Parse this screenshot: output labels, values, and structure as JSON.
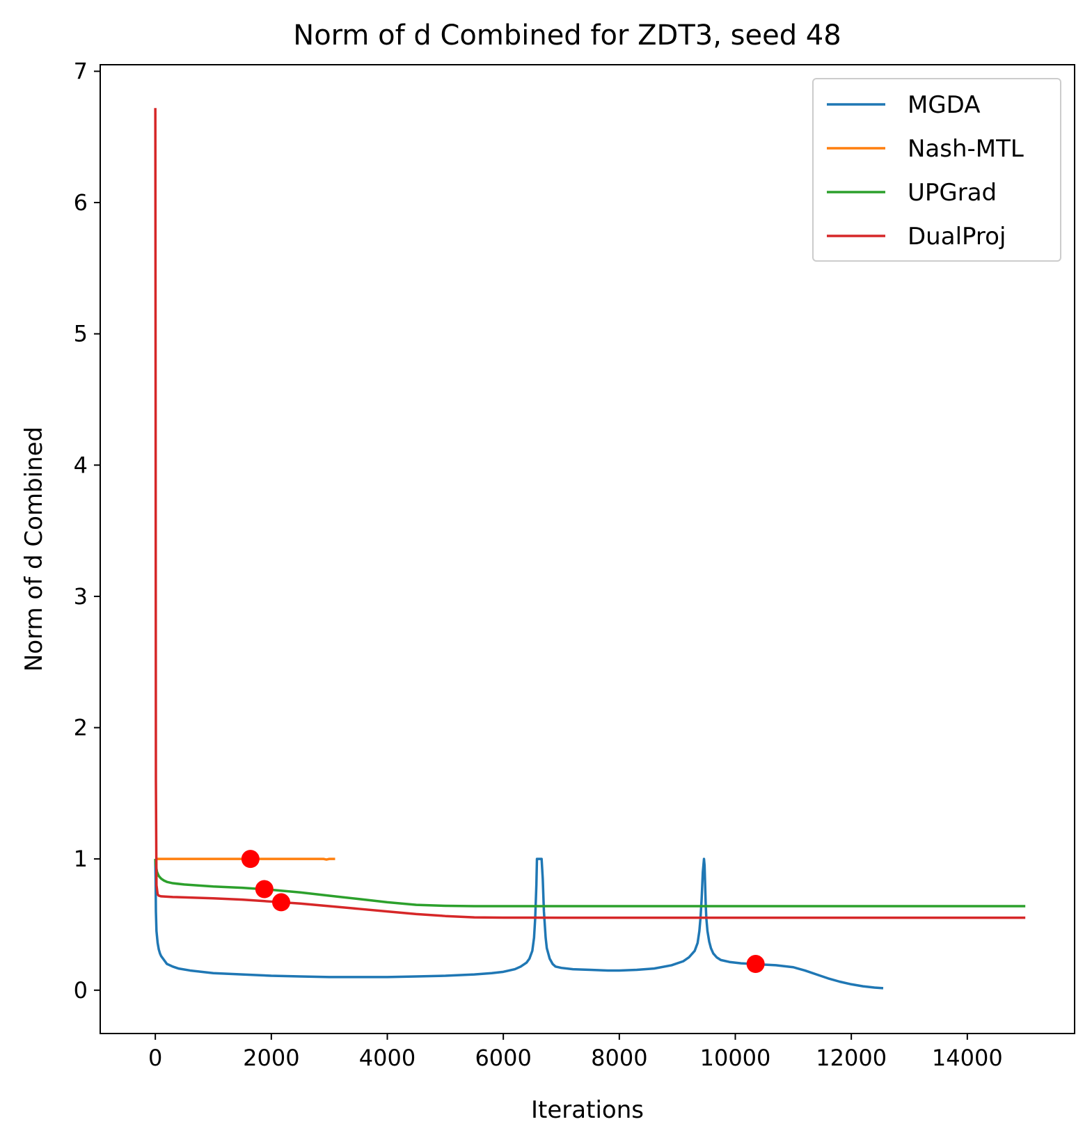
{
  "chart_data": {
    "type": "line",
    "title": "Norm of d Combined for ZDT3, seed 48",
    "xlabel": "Iterations",
    "ylabel": "Norm of d Combined",
    "xlim": [
      -950,
      15850
    ],
    "ylim": [
      -0.33,
      7.05
    ],
    "xticks": [
      0,
      2000,
      4000,
      6000,
      8000,
      10000,
      12000,
      14000
    ],
    "yticks": [
      0,
      1,
      2,
      3,
      4,
      5,
      6,
      7
    ],
    "grid": false,
    "legend_position": "top-right",
    "series": [
      {
        "name": "MGDA",
        "color": "#1f77b4",
        "x": [
          0,
          5,
          10,
          20,
          40,
          60,
          80,
          100,
          150,
          200,
          300,
          400,
          600,
          800,
          1000,
          1500,
          2000,
          2500,
          3000,
          3500,
          4000,
          4500,
          5000,
          5500,
          5800,
          6000,
          6200,
          6300,
          6400,
          6450,
          6500,
          6530,
          6550,
          6570,
          6580,
          6600,
          6650,
          6660,
          6680,
          6700,
          6730,
          6750,
          6800,
          6850,
          6900,
          7000,
          7200,
          7500,
          7800,
          8000,
          8300,
          8600,
          8900,
          9100,
          9200,
          9300,
          9350,
          9380,
          9400,
          9420,
          9440,
          9460,
          9470,
          9480,
          9490,
          9500,
          9520,
          9550,
          9580,
          9620,
          9680,
          9750,
          9900,
          10100,
          10300,
          10500,
          10700,
          11000,
          11200,
          11400,
          11600,
          11800,
          12000,
          12200,
          12400,
          12550
        ],
        "y": [
          1.0,
          0.85,
          0.6,
          0.45,
          0.36,
          0.31,
          0.28,
          0.26,
          0.23,
          0.2,
          0.18,
          0.165,
          0.15,
          0.14,
          0.13,
          0.12,
          0.11,
          0.105,
          0.1,
          0.1,
          0.1,
          0.105,
          0.11,
          0.12,
          0.13,
          0.14,
          0.16,
          0.18,
          0.21,
          0.24,
          0.3,
          0.4,
          0.55,
          0.8,
          1.0,
          1.0,
          1.0,
          1.0,
          0.85,
          0.6,
          0.4,
          0.32,
          0.24,
          0.2,
          0.18,
          0.17,
          0.16,
          0.155,
          0.15,
          0.15,
          0.155,
          0.165,
          0.19,
          0.22,
          0.25,
          0.3,
          0.36,
          0.45,
          0.55,
          0.7,
          0.9,
          1.0,
          0.95,
          0.8,
          0.65,
          0.55,
          0.45,
          0.37,
          0.32,
          0.28,
          0.25,
          0.23,
          0.215,
          0.205,
          0.2,
          0.195,
          0.19,
          0.175,
          0.15,
          0.12,
          0.09,
          0.065,
          0.045,
          0.03,
          0.02,
          0.015
        ]
      },
      {
        "name": "Nash-MTL",
        "color": "#ff7f0e",
        "x": [
          0,
          500,
          1000,
          1500,
          2000,
          2500,
          2900,
          2950,
          3000,
          3100
        ],
        "y": [
          1.0,
          1.0,
          1.0,
          1.0,
          1.0,
          1.0,
          1.0,
          0.995,
          1.0,
          1.0
        ]
      },
      {
        "name": "UPGrad",
        "color": "#2ca02c",
        "x": [
          0,
          10,
          30,
          60,
          100,
          150,
          200,
          300,
          500,
          1000,
          1500,
          2000,
          2500,
          3000,
          3500,
          4000,
          4500,
          5000,
          5500,
          6000,
          7000,
          8000,
          9000,
          10000,
          11000,
          12000,
          13000,
          14000,
          15000
        ],
        "y": [
          1.0,
          0.95,
          0.9,
          0.87,
          0.85,
          0.835,
          0.825,
          0.815,
          0.805,
          0.79,
          0.78,
          0.765,
          0.745,
          0.72,
          0.695,
          0.67,
          0.65,
          0.643,
          0.64,
          0.64,
          0.64,
          0.64,
          0.64,
          0.64,
          0.64,
          0.64,
          0.64,
          0.64,
          0.64
        ]
      },
      {
        "name": "DualProj",
        "color": "#d62728",
        "x": [
          0,
          5,
          10,
          20,
          40,
          60,
          100,
          300,
          1000,
          1500,
          2000,
          2500,
          3000,
          3500,
          4000,
          4500,
          5000,
          5500,
          6000,
          7000,
          8000,
          9000,
          10000,
          11000,
          12000,
          13000,
          14000,
          15000
        ],
        "y": [
          6.72,
          4.5,
          1.6,
          0.8,
          0.73,
          0.72,
          0.715,
          0.71,
          0.7,
          0.69,
          0.675,
          0.66,
          0.64,
          0.62,
          0.6,
          0.58,
          0.565,
          0.555,
          0.553,
          0.552,
          0.552,
          0.552,
          0.552,
          0.552,
          0.552,
          0.552,
          0.552,
          0.552
        ]
      }
    ],
    "markers": {
      "color": "#ff0000",
      "points": [
        {
          "x": 1640,
          "y": 1.0
        },
        {
          "x": 1880,
          "y": 0.77
        },
        {
          "x": 2170,
          "y": 0.67
        },
        {
          "x": 10350,
          "y": 0.2
        }
      ]
    }
  }
}
